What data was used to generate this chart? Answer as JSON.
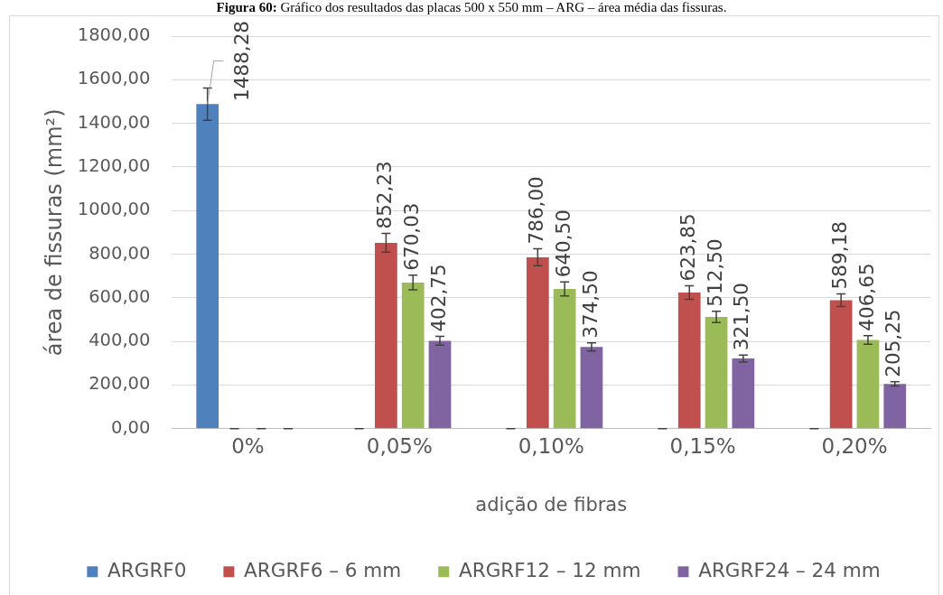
{
  "chart_data": {
    "type": "bar",
    "title": "Figura 60: Gráfico dos resultados das placas 500 x 550 mm – ARG – área média das fissuras.",
    "xlabel": "adição de fibras",
    "ylabel": "área de fissuras (mm²)",
    "categories": [
      "0%",
      "0,05%",
      "0,10%",
      "0,15%",
      "0,20%"
    ],
    "series": [
      {
        "name": "ARGRF0",
        "color": "#4f81bd",
        "values": [
          1488.28,
          0,
          0,
          0,
          0
        ],
        "errors": [
          74,
          0,
          0,
          0,
          0
        ],
        "value_labels": [
          "1488,28",
          null,
          null,
          null,
          null
        ]
      },
      {
        "name": "ARGRF6 – 6 mm",
        "color": "#c0504d",
        "values": [
          0,
          852.23,
          786.0,
          623.85,
          589.18
        ],
        "errors": [
          0,
          43,
          39,
          31,
          29
        ],
        "value_labels": [
          null,
          "852,23",
          "786,00",
          "623,85",
          "589,18"
        ]
      },
      {
        "name": "ARGRF12 – 12 mm",
        "color": "#9bbb59",
        "values": [
          0,
          670.03,
          640.5,
          512.5,
          406.65
        ],
        "errors": [
          0,
          34,
          32,
          26,
          20
        ],
        "value_labels": [
          null,
          "670,03",
          "640,50",
          "512,50",
          "406,65"
        ]
      },
      {
        "name": "ARGRF24 – 24 mm",
        "color": "#8064a2",
        "values": [
          0,
          402.75,
          374.5,
          321.5,
          205.25
        ],
        "errors": [
          0,
          20,
          19,
          16,
          10
        ],
        "value_labels": [
          null,
          "402,75",
          "374,50",
          "321,50",
          "205,25"
        ]
      }
    ],
    "ylim": [
      0,
      1800
    ],
    "yticks": [
      {
        "value": 0,
        "label": "0,00"
      },
      {
        "value": 200,
        "label": "200,00"
      },
      {
        "value": 400,
        "label": "400,00"
      },
      {
        "value": 600,
        "label": "600,00"
      },
      {
        "value": 800,
        "label": "800,00"
      },
      {
        "value": 1000,
        "label": "1000,00"
      },
      {
        "value": 1200,
        "label": "1200,00"
      },
      {
        "value": 1400,
        "label": "1400,00"
      },
      {
        "value": 1600,
        "label": "1600,00"
      },
      {
        "value": 1800,
        "label": "1800,00"
      }
    ],
    "grid": "y",
    "legend": "bottom"
  }
}
